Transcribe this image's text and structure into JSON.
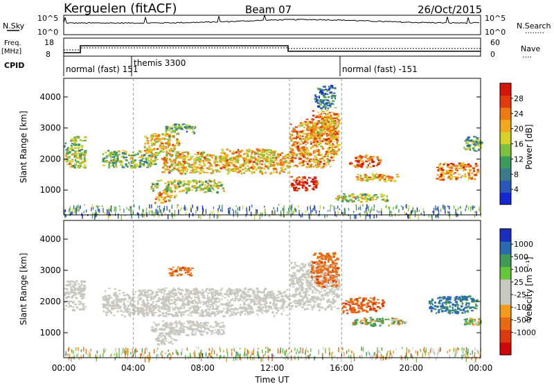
{
  "header": {
    "station": "Kerguelen (fitACF)",
    "beam": "Beam 07",
    "date": "26/Oct/2015"
  },
  "labels": {
    "nsky": "N.Sky",
    "freq_line1": "Freq.",
    "freq_line2": "[MHz]",
    "cpid": "CPID",
    "nsearch": "N.Search",
    "nave": "Nave",
    "nsearch_key": "........",
    "nave_key": "...."
  },
  "cpid_segments": [
    {
      "label": "normal (fast) 151",
      "start_h": 0
    },
    {
      "label": "themis 3300",
      "start_h": 4
    },
    {
      "label": "normal (fast) -151",
      "start_h": 16
    }
  ],
  "nsky_ticks": [
    "10^5",
    "10^0"
  ],
  "nsearch_ticks": [
    "10^5",
    "10^0"
  ],
  "freq_ticks": [
    "18",
    "8"
  ],
  "nave_ticks": [
    "60",
    "0"
  ],
  "colors": {
    "power": [
      "#1428d2",
      "#2a58b8",
      "#3a7a8a",
      "#3d9b5c",
      "#7fbf3e",
      "#d7d22a",
      "#f2a81e",
      "#ef7a12",
      "#e23a0c",
      "#d41608"
    ],
    "velocity": [
      "#1b2fbf",
      "#2b6ab0",
      "#3f9a56",
      "#66c43a",
      "#c8c8c0",
      "#c8c8c0",
      "#f29a1e",
      "#ea6a12",
      "#dc3a0c",
      "#cc0808"
    ]
  },
  "chart_data": [
    {
      "type": "heatmap",
      "name_quantity": "Power",
      "xlabel": "",
      "ylabel": "Slant Range [km]",
      "colorbar_label": "Power [dB]",
      "colorbar_ticks": [
        "4",
        "8",
        "12",
        "16",
        "20",
        "24",
        "28"
      ],
      "colorbar_range": [
        0,
        32
      ],
      "x_range_hours": [
        0,
        24
      ],
      "y_range_km": [
        200,
        4600
      ],
      "y_ticks": [
        "1000",
        "2000",
        "3000",
        "4000"
      ],
      "regions": [
        {
          "t0": 0.0,
          "t1": 1.2,
          "r0": 1750,
          "r1": 2750,
          "level": 16
        },
        {
          "t0": 2.2,
          "t1": 5.4,
          "r0": 1750,
          "r1": 2300,
          "level": 14
        },
        {
          "t0": 4.6,
          "t1": 6.6,
          "r0": 2200,
          "r1": 2850,
          "level": 20
        },
        {
          "t0": 5.6,
          "t1": 9.4,
          "r0": 1550,
          "r1": 2250,
          "level": 20
        },
        {
          "t0": 9.0,
          "t1": 13.0,
          "r0": 1550,
          "r1": 2350,
          "level": 20
        },
        {
          "t0": 5.8,
          "t1": 7.6,
          "r0": 2850,
          "r1": 3150,
          "level": 12
        },
        {
          "t0": 5.0,
          "t1": 9.2,
          "r0": 950,
          "r1": 1350,
          "level": 16
        },
        {
          "t0": 5.2,
          "t1": 6.4,
          "r0": 600,
          "r1": 950,
          "level": 22
        },
        {
          "t0": 13.0,
          "t1": 15.8,
          "r0": 1750,
          "r1": 3300,
          "level": 22
        },
        {
          "t0": 13.0,
          "t1": 14.6,
          "r0": 1000,
          "r1": 1450,
          "level": 30
        },
        {
          "t0": 14.2,
          "t1": 15.8,
          "r0": 2500,
          "r1": 3600,
          "level": 22
        },
        {
          "t0": 14.4,
          "t1": 15.6,
          "r0": 3650,
          "r1": 4400,
          "level": 8
        },
        {
          "t0": 15.6,
          "t1": 18.6,
          "r0": 650,
          "r1": 900,
          "level": 16
        },
        {
          "t0": 16.4,
          "t1": 18.2,
          "r0": 1750,
          "r1": 2150,
          "level": 26
        },
        {
          "t0": 16.8,
          "t1": 19.2,
          "r0": 1300,
          "r1": 1550,
          "level": 22
        },
        {
          "t0": 21.4,
          "t1": 23.8,
          "r0": 1350,
          "r1": 1900,
          "level": 24
        },
        {
          "t0": 23.0,
          "t1": 24.0,
          "r0": 2250,
          "r1": 2750,
          "level": 12
        }
      ]
    },
    {
      "type": "heatmap",
      "name_quantity": "Velocity",
      "xlabel": "Time UT",
      "ylabel": "Slant Range [km]",
      "colorbar_label": "Velocity [m s⁻¹]",
      "colorbar_ticks": [
        "1000",
        "500",
        "100",
        "25",
        "-25",
        "-100",
        "-500",
        "-1000"
      ],
      "x_ticks": [
        "00:00",
        "04:00",
        "08:00",
        "12:00",
        "16:00",
        "20:00",
        "00:00"
      ],
      "x_range_hours": [
        0,
        24
      ],
      "y_range_km": [
        200,
        4600
      ],
      "y_ticks": [
        "1000",
        "2000",
        "3000",
        "4000"
      ],
      "regions": [
        {
          "t0": 0.0,
          "t1": 1.2,
          "r0": 1750,
          "r1": 2700,
          "v": 0
        },
        {
          "t0": 2.2,
          "t1": 13.0,
          "r0": 1550,
          "r1": 2450,
          "v": 0
        },
        {
          "t0": 5.0,
          "t1": 9.2,
          "r0": 950,
          "r1": 1400,
          "v": 0
        },
        {
          "t0": 5.2,
          "t1": 6.4,
          "r0": 650,
          "r1": 950,
          "v": 0
        },
        {
          "t0": 6.0,
          "t1": 7.4,
          "r0": 2850,
          "r1": 3150,
          "v": -300
        },
        {
          "t0": 13.0,
          "t1": 15.8,
          "r0": 1750,
          "r1": 3300,
          "v": 0
        },
        {
          "t0": 14.2,
          "t1": 15.8,
          "r0": 2500,
          "r1": 3600,
          "v": -300
        },
        {
          "t0": 16.0,
          "t1": 18.4,
          "r0": 1650,
          "r1": 2150,
          "v": -400
        },
        {
          "t0": 16.6,
          "t1": 19.6,
          "r0": 1250,
          "r1": 1500,
          "v": 80
        },
        {
          "t0": 21.0,
          "t1": 23.8,
          "r0": 1650,
          "r1": 2200,
          "v": 600
        },
        {
          "t0": 23.0,
          "t1": 24.0,
          "r0": 1250,
          "r1": 1500,
          "v": 80
        }
      ]
    }
  ]
}
